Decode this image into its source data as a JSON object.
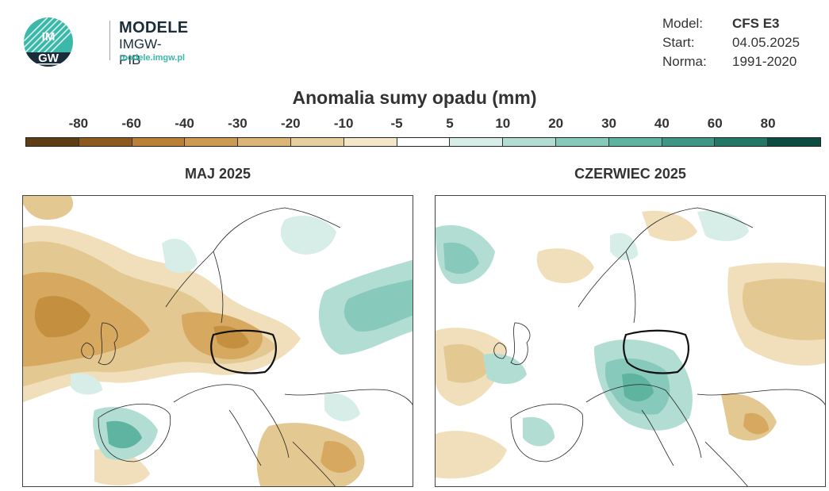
{
  "header": {
    "logo_text": "IMGW",
    "brand_name": "MODELE",
    "brand_sub": "IMGW-PIB",
    "brand_url": "modele.imgw.pl"
  },
  "meta": {
    "model_label": "Model:",
    "model_value": "CFS E3",
    "start_label": "Start:",
    "start_value": "04.05.2025",
    "norm_label": "Norma:",
    "norm_value": "1991-2020"
  },
  "legend": {
    "title": "Anomalia sumy opadu (mm)",
    "ticks": [
      "-80",
      "-60",
      "-40",
      "-30",
      "-20",
      "-10",
      "-5",
      "5",
      "10",
      "20",
      "30",
      "40",
      "60",
      "80"
    ],
    "colors": [
      "#5e3c14",
      "#8a5a1f",
      "#b98036",
      "#cc9b52",
      "#dcb677",
      "#e8cf9f",
      "#f4e6c8",
      "#ffffff",
      "#d6ede8",
      "#b1ddd3",
      "#87c9bb",
      "#5fb3a1",
      "#3e9686",
      "#237767",
      "#0c4c42"
    ]
  },
  "maps": [
    {
      "title": "MAJ 2025"
    },
    {
      "title": "CZERWIEC 2025"
    }
  ]
}
